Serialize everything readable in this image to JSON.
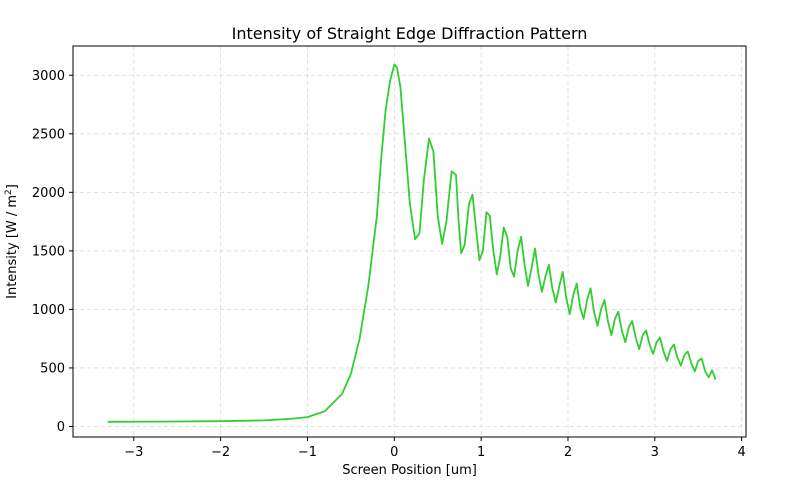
{
  "chart_data": {
    "type": "line",
    "title": "Intensity of Straight Edge Diffraction Pattern",
    "xlabel": "Screen Position [um]",
    "ylabel_base": "Intensity [W / m",
    "ylabel_sup": "2",
    "ylabel_end": "]",
    "xlim": [
      -3.7,
      4.05
    ],
    "ylim": [
      -90,
      3250
    ],
    "xticks": [
      -3,
      -2,
      -1,
      0,
      1,
      2,
      3,
      4
    ],
    "xtick_labels": [
      "−3",
      "−2",
      "−1",
      "0",
      "1",
      "2",
      "3",
      "4"
    ],
    "yticks": [
      0,
      500,
      1000,
      1500,
      2000,
      2500,
      3000
    ],
    "ytick_labels": [
      "0",
      "500",
      "1000",
      "1500",
      "2000",
      "2500",
      "3000"
    ],
    "grid": true,
    "series": [
      {
        "color": "#32cd32",
        "x": [
          -3.3,
          -2.5,
          -2.0,
          -1.5,
          -1.2,
          -1.0,
          -0.8,
          -0.6,
          -0.5,
          -0.4,
          -0.3,
          -0.2,
          -0.15,
          -0.1,
          -0.05,
          0.0,
          0.03,
          0.07,
          0.12,
          0.18,
          0.24,
          0.29,
          0.34,
          0.4,
          0.45,
          0.5,
          0.55,
          0.6,
          0.66,
          0.71,
          0.74,
          0.77,
          0.81,
          0.86,
          0.9,
          0.94,
          0.98,
          1.02,
          1.06,
          1.1,
          1.14,
          1.18,
          1.22,
          1.26,
          1.3,
          1.34,
          1.38,
          1.42,
          1.46,
          1.5,
          1.54,
          1.58,
          1.62,
          1.66,
          1.7,
          1.74,
          1.78,
          1.82,
          1.86,
          1.9,
          1.94,
          1.98,
          2.02,
          2.06,
          2.1,
          2.14,
          2.18,
          2.22,
          2.26,
          2.3,
          2.34,
          2.38,
          2.42,
          2.46,
          2.5,
          2.54,
          2.58,
          2.62,
          2.66,
          2.7,
          2.74,
          2.78,
          2.82,
          2.86,
          2.9,
          2.94,
          2.98,
          3.02,
          3.06,
          3.1,
          3.14,
          3.18,
          3.22,
          3.26,
          3.3,
          3.34,
          3.38,
          3.42,
          3.46,
          3.5,
          3.54,
          3.58,
          3.62,
          3.66,
          3.7
        ],
        "y": [
          40,
          42,
          45,
          52,
          65,
          80,
          130,
          280,
          450,
          750,
          1200,
          1800,
          2300,
          2700,
          2950,
          3090,
          3070,
          2900,
          2450,
          1900,
          1600,
          1650,
          2100,
          2460,
          2350,
          1800,
          1560,
          1750,
          2180,
          2150,
          1750,
          1480,
          1550,
          1900,
          1980,
          1700,
          1420,
          1500,
          1830,
          1800,
          1500,
          1300,
          1450,
          1700,
          1620,
          1350,
          1280,
          1500,
          1620,
          1380,
          1200,
          1350,
          1520,
          1300,
          1150,
          1280,
          1380,
          1180,
          1060,
          1200,
          1320,
          1100,
          960,
          1120,
          1220,
          1020,
          920,
          1080,
          1180,
          980,
          860,
          1000,
          1080,
          900,
          780,
          920,
          980,
          820,
          720,
          850,
          900,
          760,
          660,
          780,
          820,
          700,
          620,
          720,
          760,
          640,
          560,
          660,
          700,
          590,
          520,
          610,
          640,
          540,
          470,
          560,
          580,
          470,
          420,
          480,
          400
        ]
      }
    ]
  }
}
